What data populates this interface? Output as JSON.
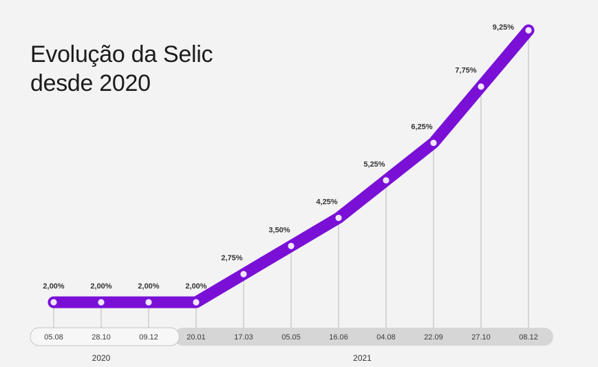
{
  "title_line1": "Evolução da Selic",
  "title_line2": "desde 2020",
  "chart_data": {
    "type": "line",
    "title": "Evolução da Selic desde 2020",
    "xlabel": "",
    "ylabel": "",
    "categories": [
      "05.08",
      "28.10",
      "09.12",
      "20.01",
      "17.03",
      "05.05",
      "16.06",
      "04.08",
      "22.09",
      "27.10",
      "08.12"
    ],
    "values": [
      2.0,
      2.0,
      2.0,
      2.0,
      2.75,
      3.5,
      4.25,
      5.25,
      6.25,
      7.75,
      9.25
    ],
    "labels": [
      "2,00%",
      "2,00%",
      "2,00%",
      "2,00%",
      "2,75%",
      "3,50%",
      "4,25%",
      "5,25%",
      "6,25%",
      "7,75%",
      "9,25%"
    ],
    "year_groups": [
      {
        "label": "2020",
        "count": 3
      },
      {
        "label": "2021",
        "count": 8
      }
    ],
    "grid": false,
    "colors": {
      "line": "#7a10d6",
      "marker": "#f1e6ff",
      "guide": "#b9b9b9",
      "axis_2020_bg": "#f7f7f7",
      "axis_2021_bg": "#d6d6d6"
    }
  }
}
